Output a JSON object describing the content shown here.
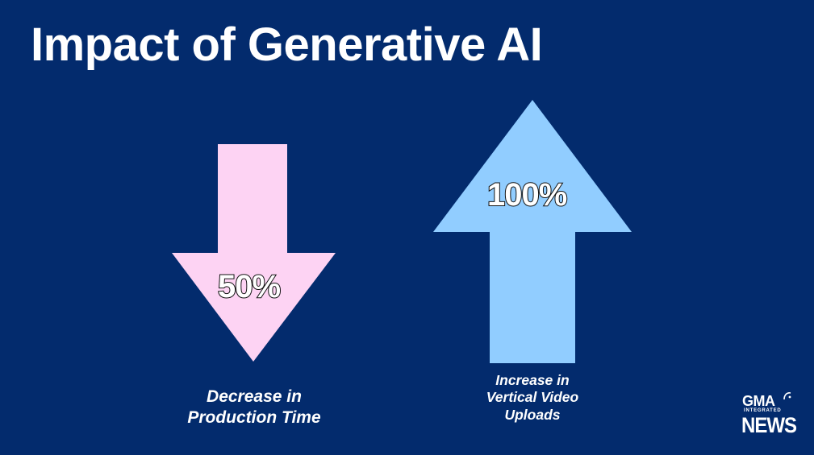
{
  "slide": {
    "title": "Impact of Generative AI",
    "background_color": "#032b6d"
  },
  "decrease": {
    "value": "50%",
    "caption_line1": "Decrease in",
    "caption_line2": "Production Time",
    "arrow_color": "#fdd3f3",
    "arrow_icon": "arrow-down-icon"
  },
  "increase": {
    "value": "100%",
    "caption_line1": "Increase in",
    "caption_line2": "Vertical Video",
    "caption_line3": "Uploads",
    "arrow_color": "#91cdff",
    "arrow_icon": "arrow-up-icon"
  },
  "logo": {
    "brand": "GMA",
    "sub": "INTEGRATED",
    "name": "NEWS"
  }
}
